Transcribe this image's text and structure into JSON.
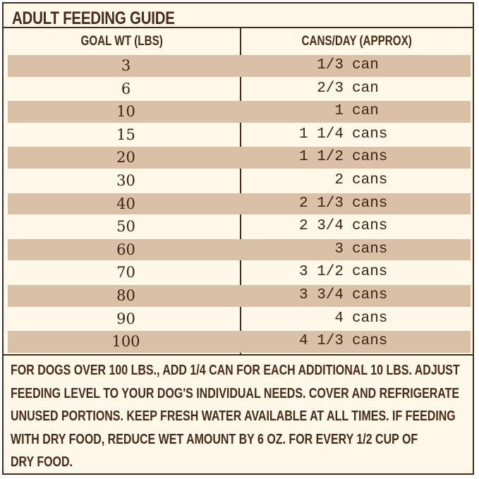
{
  "guide": {
    "title": "ADULT FEEDING GUIDE",
    "columns": {
      "weight": "GOAL WT (LBS)",
      "amount": "CANS/DAY (APPROX)"
    },
    "rows": [
      {
        "weight": "3",
        "qty": "1/3",
        "unit": "can",
        "shaded": true
      },
      {
        "weight": "6",
        "qty": "2/3",
        "unit": "can",
        "shaded": false
      },
      {
        "weight": "10",
        "qty": "1",
        "unit": "can",
        "shaded": true
      },
      {
        "weight": "15",
        "qty": "1 1/4",
        "unit": "cans",
        "shaded": false
      },
      {
        "weight": "20",
        "qty": "1 1/2",
        "unit": "cans",
        "shaded": true
      },
      {
        "weight": "30",
        "qty": "2",
        "unit": "cans",
        "shaded": false
      },
      {
        "weight": "40",
        "qty": "2 1/3",
        "unit": "cans",
        "shaded": true
      },
      {
        "weight": "50",
        "qty": "2 3/4",
        "unit": "cans",
        "shaded": false
      },
      {
        "weight": "60",
        "qty": "3",
        "unit": "cans",
        "shaded": true
      },
      {
        "weight": "70",
        "qty": "3 1/2",
        "unit": "cans",
        "shaded": false
      },
      {
        "weight": "80",
        "qty": "3 3/4",
        "unit": "cans",
        "shaded": true
      },
      {
        "weight": "90",
        "qty": "4",
        "unit": "cans",
        "shaded": false
      },
      {
        "weight": "100",
        "qty": "4 1/3",
        "unit": "cans",
        "shaded": true
      }
    ],
    "note_lines": [
      "FOR DOGS OVER 100 LBS., ADD 1/4 CAN FOR EACH ADDITIONAL 10 LBS. ADJUST",
      "FEEDING LEVEL TO YOUR DOG'S INDIVIDUAL NEEDS. COVER AND REFRIGERATE",
      "UNUSED PORTIONS. KEEP FRESH WATER AVAILABLE AT ALL TIMES. IF FEEDING",
      "WITH DRY FOOD, REDUCE WET AMOUNT BY 6 OZ. FOR EVERY 1/2 CUP OF",
      "DRY FOOD."
    ]
  },
  "colors": {
    "border": "#4a2a1a",
    "background": "#fdf8e7",
    "row_shade": "#d9c0a7",
    "text": "#3e2415"
  }
}
